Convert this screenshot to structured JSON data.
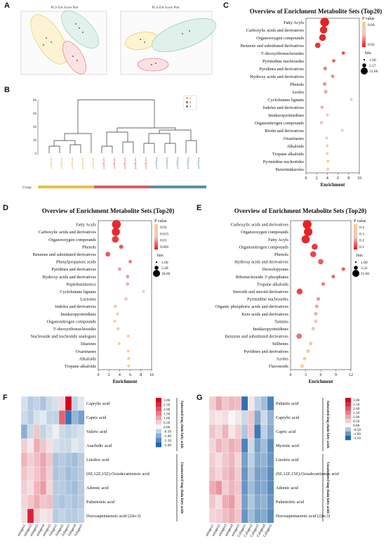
{
  "panels": {
    "A": {
      "letter": "A",
      "plot1": {
        "title": "PLS-DA Score Plot"
      },
      "plot2": {
        "title": "PLS-DA Score Plot"
      }
    },
    "B": {
      "letter": "B",
      "yticks": [
        "80",
        "60",
        "40",
        "20",
        "0"
      ],
      "legend": [
        "1",
        "2",
        "3"
      ],
      "group_label": "Group",
      "colors": {
        "g1": "#e8c14a",
        "g2": "#e05a66",
        "g3": "#5b8fa8"
      }
    },
    "C": {
      "letter": "C"
    },
    "D": {
      "letter": "D"
    },
    "E": {
      "letter": "E"
    },
    "F": {
      "letter": "F",
      "rows": [
        "Caprylic acid",
        "Capric acid",
        "Valeric acid",
        "Arachidic acid",
        "Linoleic acid",
        "(9Z,12Z,15Z)-Octadecatrienoic acid",
        "Adrenic acid",
        "Palmitoleic acid",
        "Docosapentaenoic acid (22n-3)"
      ],
      "cols": [
        "antagen1",
        "antagen2",
        "antagen3",
        "antagen4",
        "antagen5",
        "Infagen1",
        "Infagen2",
        "Infagen3",
        "Infagen4",
        "Infagen5"
      ],
      "group1": "Saturated long chain fatty acids",
      "group2": "Unsaturated long chain fatty acids",
      "scale": [
        "3.00",
        "2.50",
        "2.00",
        "1.50",
        "1.00",
        "0.50",
        "0.00",
        "-0.50",
        "-1.00",
        "-1.50",
        "-2.00"
      ],
      "values": [
        [
          -0.3,
          -0.6,
          -0.5,
          -0.7,
          -0.4,
          -0.3,
          0.4,
          3.0,
          -0.5,
          -0.2
        ],
        [
          -0.4,
          -0.6,
          -0.3,
          -0.2,
          -0.5,
          -0.5,
          1.8,
          -1.8,
          -0.9,
          -1.2
        ],
        [
          -1.0,
          -0.4,
          0.6,
          -0.5,
          -0.3,
          -0.1,
          -0.4,
          -0.5,
          -0.4,
          -0.3
        ],
        [
          0.5,
          0.2,
          0.9,
          0.6,
          0.3,
          -0.3,
          -0.4,
          -0.4,
          -0.2,
          -0.3
        ],
        [
          0.8,
          0.5,
          0.7,
          1.0,
          0.6,
          -0.7,
          -0.6,
          -0.7,
          -0.8,
          -0.6
        ],
        [
          0.6,
          0.4,
          0.6,
          0.9,
          0.5,
          -0.7,
          -0.6,
          -0.8,
          -0.7,
          -0.6
        ],
        [
          0.5,
          0.3,
          0.8,
          1.1,
          0.4,
          -0.6,
          -0.6,
          -0.7,
          -0.8,
          -0.6
        ],
        [
          0.4,
          0.6,
          0.9,
          0.6,
          0.7,
          -0.6,
          -0.7,
          -0.6,
          -0.7,
          -0.6
        ],
        [
          0.3,
          2.6,
          0.5,
          0.2,
          0.3,
          -0.6,
          -0.5,
          -0.6,
          -0.6,
          -0.5
        ]
      ]
    },
    "G": {
      "letter": "G",
      "rows": [
        "Palmitic acid",
        "Caprylic acid",
        "Capric acid",
        "Myristic acid",
        "Linoleic acid",
        "(9Z,12Z,15Z)-Octadecatrienoic acid",
        "Adrenic acid",
        "Palmitoleic acid",
        "Docosapentaenoic acid (22n-3)"
      ],
      "cols": [
        "antagen1",
        "antagen2",
        "antagen3",
        "antagen4",
        "antagen5",
        "Cafagen1",
        "Cafagen2",
        "Cafagen3",
        "Cafagen4",
        "Cafagen5"
      ],
      "group1": "Saturated long chain fatty acids",
      "group2": "Unsaturated long chain fatty acids",
      "scale": [
        "3.00",
        "2.50",
        "2.00",
        "1.50",
        "1.00",
        "0.50",
        "0.00",
        "-0.50",
        "-1.00",
        "-1.50"
      ],
      "values": [
        [
          0.5,
          1.0,
          0.6,
          0.8,
          0.7,
          -1.4,
          0.2,
          -0.4,
          -0.6,
          -1.2
        ],
        [
          0.3,
          0.2,
          0.3,
          0.0,
          0.2,
          -0.3,
          0.6,
          -0.8,
          -0.3,
          -0.7
        ],
        [
          0.6,
          0.4,
          0.8,
          0.2,
          0.5,
          -0.5,
          0.6,
          -1.3,
          -0.4,
          -0.8
        ],
        [
          0.4,
          0.8,
          0.6,
          0.9,
          0.7,
          -1.2,
          -0.3,
          -0.9,
          -0.6,
          -1.1
        ],
        [
          0.5,
          0.3,
          0.6,
          0.8,
          0.4,
          -0.9,
          -0.4,
          -0.8,
          -0.7,
          -1.0
        ],
        [
          0.6,
          0.4,
          0.7,
          0.9,
          0.5,
          -1.0,
          -0.5,
          -0.9,
          -0.8,
          -1.1
        ],
        [
          0.9,
          1.2,
          0.5,
          0.8,
          0.6,
          -1.0,
          -0.6,
          -0.9,
          -0.8,
          -1.1
        ],
        [
          0.6,
          0.3,
          0.9,
          1.1,
          0.5,
          -0.9,
          -0.5,
          -0.8,
          -0.7,
          -1.0
        ],
        [
          0.4,
          0.5,
          0.7,
          0.9,
          0.6,
          -1.0,
          -0.6,
          -0.9,
          -0.8,
          -1.1
        ]
      ]
    }
  },
  "chart_data": [
    {
      "id": "C",
      "type": "scatter",
      "title": "Overview of Enrichment Metabolite Sets (Top20)",
      "xlabel": "Enrichment",
      "xlim": [
        0,
        10
      ],
      "xticks": [
        "0",
        "2",
        "4",
        "6",
        "8",
        "10"
      ],
      "pvalue_legend": {
        "title": "P value",
        "ticks": [
          "0.04",
          "0.02"
        ]
      },
      "hits_legend": {
        "title": "hits",
        "values": [
          "1.00",
          "5.57",
          "31.00"
        ]
      },
      "categories": [
        "Fatty Acyls",
        "Carboxylic acids and derivatives",
        "Organooxygen compounds",
        "Benzene and substituted derivatives",
        "5'-deoxyribonucleosides",
        "Pyrimidine nucleosides",
        "Pyridines and derivatives",
        "Hydroxy acids and derivatives",
        "Phenols",
        "Azoles",
        "Cyclobutane lignans",
        "Indoles and derivatives",
        "Imidazopyrimidines",
        "Organonitrogen compounds",
        "Biotin and derivatives",
        "Oxazinanes",
        "Alkaloids",
        "Tropane alkaloids",
        "Pyrimidine nucleotides",
        "Benzimidazoles"
      ],
      "x": [
        3.5,
        3.3,
        3.1,
        2.2,
        7.0,
        5.2,
        3.6,
        5.0,
        3.5,
        3.7,
        8.5,
        3.0,
        4.0,
        2.9,
        6.8,
        3.9,
        4.0,
        4.0,
        4.1,
        4.1
      ],
      "hits": [
        31,
        20,
        16,
        9,
        2,
        2,
        3,
        2,
        3,
        3,
        1,
        2,
        1,
        2,
        1,
        1,
        1,
        1,
        1,
        1
      ],
      "p": [
        0.001,
        0.002,
        0.002,
        0.004,
        0.008,
        0.01,
        0.015,
        0.015,
        0.018,
        0.02,
        0.025,
        0.022,
        0.024,
        0.024,
        0.04,
        0.04,
        0.045,
        0.045,
        0.046,
        0.048
      ]
    },
    {
      "id": "D",
      "type": "scatter",
      "title": "Overview of Enrichment Metabolite Sets (Top20)",
      "xlabel": "Enrichment",
      "xlim": [
        0,
        10
      ],
      "xticks": [
        "0",
        "2",
        "4",
        "6",
        "8",
        "10"
      ],
      "pvalue_legend": {
        "title": "P value",
        "ticks": [
          "0.02",
          "0.015",
          "0.01",
          "0.005"
        ]
      },
      "hits_legend": {
        "title": "hits",
        "values": [
          "1.00",
          "5.48",
          "30.00"
        ]
      },
      "categories": [
        "Fatty Acyls",
        "Carboxylic acids and derivatives",
        "Organooxygen compounds",
        "Phenols",
        "Benzene and substituted derivatives",
        "Phenylpropanoic acids",
        "Pyridines and derivatives",
        "Hydroxy acids and derivatives",
        "Peptidomimetics",
        "Cyclobutane lignans",
        "Lactones",
        "Indoles and derivatives",
        "Imidazopyrimidines",
        "Organonitrogen compounds",
        "5'-deoxyribonucleosides",
        "Nucleoside and nucleotide analogues",
        "Diazines",
        "Oxazinanes",
        "Alkaloids",
        "Tropane alkaloids"
      ],
      "x": [
        3.4,
        3.3,
        3.2,
        4.3,
        1.8,
        6.0,
        4.0,
        5.5,
        5.5,
        8.5,
        5.2,
        3.2,
        3.6,
        3.1,
        3.7,
        5.6,
        3.9,
        5.6,
        5.7,
        5.7
      ],
      "hits": [
        30,
        24,
        15,
        4,
        6,
        2,
        2,
        2,
        2,
        1,
        2,
        2,
        1,
        1,
        1,
        1,
        1,
        1,
        1,
        1
      ],
      "p": [
        0.001,
        0.001,
        0.002,
        0.004,
        0.004,
        0.006,
        0.008,
        0.008,
        0.009,
        0.012,
        0.012,
        0.015,
        0.016,
        0.016,
        0.017,
        0.018,
        0.02,
        0.02,
        0.021,
        0.021
      ]
    },
    {
      "id": "E",
      "type": "scatter",
      "title": "Overview of Enrichment Metabolite Sets (Top20)",
      "xlabel": "Enrichment",
      "xlim": [
        0,
        12
      ],
      "xticks": [
        "0",
        "3",
        "6",
        "9",
        "12"
      ],
      "pvalue_legend": {
        "title": "P value",
        "ticks": [
          "0.4",
          "0.3",
          "0.2",
          "0.1"
        ]
      },
      "hits_legend": {
        "title": "hits",
        "values": [
          "1.00",
          "3.32",
          "11.00"
        ]
      },
      "categories": [
        "Carboxylic acids and derivatives",
        "Organooxygen compounds",
        "Fatty Acyls",
        "Organonitrogen compounds",
        "Phenols",
        "Hydroxy acids and derivatives",
        "Dioxolopyrans",
        "Ribonucleoside 3'-phosphates",
        "Tropane alkaloids",
        "Steroids and steroid derivatives",
        "Pyrimidine nucleosides",
        "Organic phosphoric acids and derivatives",
        "Keto acids and derivatives",
        "Tannins",
        "Imidazopyrimidines",
        "Benzene and substituted derivatives",
        "Stilbenes",
        "Pyridines and derivatives",
        "Azoles",
        "Flavonoids"
      ],
      "x": [
        3.3,
        3.5,
        3.0,
        4.8,
        4.5,
        6.0,
        10.5,
        8.5,
        6.5,
        1.8,
        5.5,
        5.2,
        5.0,
        5.0,
        4.5,
        1.7,
        4.0,
        3.5,
        2.8,
        2.3
      ],
      "hits": [
        11,
        10,
        9,
        4,
        4,
        3,
        1,
        1,
        1,
        4,
        1,
        1,
        1,
        1,
        1,
        3,
        1,
        1,
        1,
        1
      ],
      "p": [
        0.01,
        0.01,
        0.015,
        0.04,
        0.05,
        0.08,
        0.09,
        0.1,
        0.12,
        0.05,
        0.15,
        0.17,
        0.18,
        0.2,
        0.22,
        0.1,
        0.3,
        0.33,
        0.36,
        0.4
      ]
    }
  ]
}
